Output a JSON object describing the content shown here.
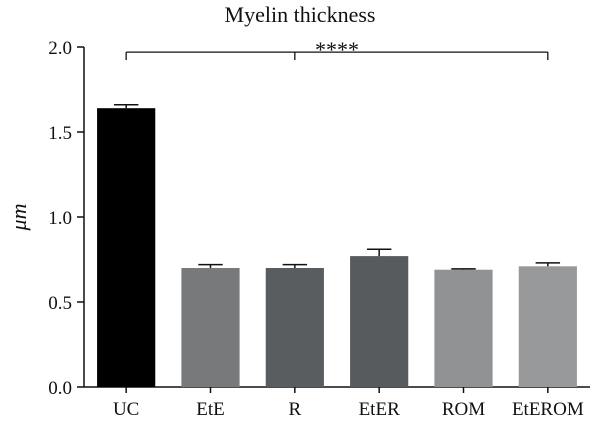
{
  "chart_data": {
    "type": "bar",
    "title": "Myelin thickness",
    "ylabel": "μm",
    "xlabel": "",
    "ylim": [
      0,
      2.0
    ],
    "yticks": [
      "0.0",
      "0.5",
      "1.0",
      "1.5",
      "2.0"
    ],
    "categories": [
      "UC",
      "EtE",
      "R",
      "EtER",
      "ROM",
      "EtEROM"
    ],
    "values": [
      1.64,
      0.7,
      0.7,
      0.77,
      0.69,
      0.71
    ],
    "errors": [
      0.02,
      0.02,
      0.02,
      0.04,
      0.005,
      0.02
    ],
    "bar_colors": [
      "#000000",
      "#77797a",
      "#5a5d60",
      "#585b5d",
      "#909293",
      "#97999a"
    ],
    "significance": {
      "label": "****",
      "from": "UC",
      "to": "EtEROM",
      "level": 1.97
    },
    "grid": false,
    "legend": "none"
  }
}
